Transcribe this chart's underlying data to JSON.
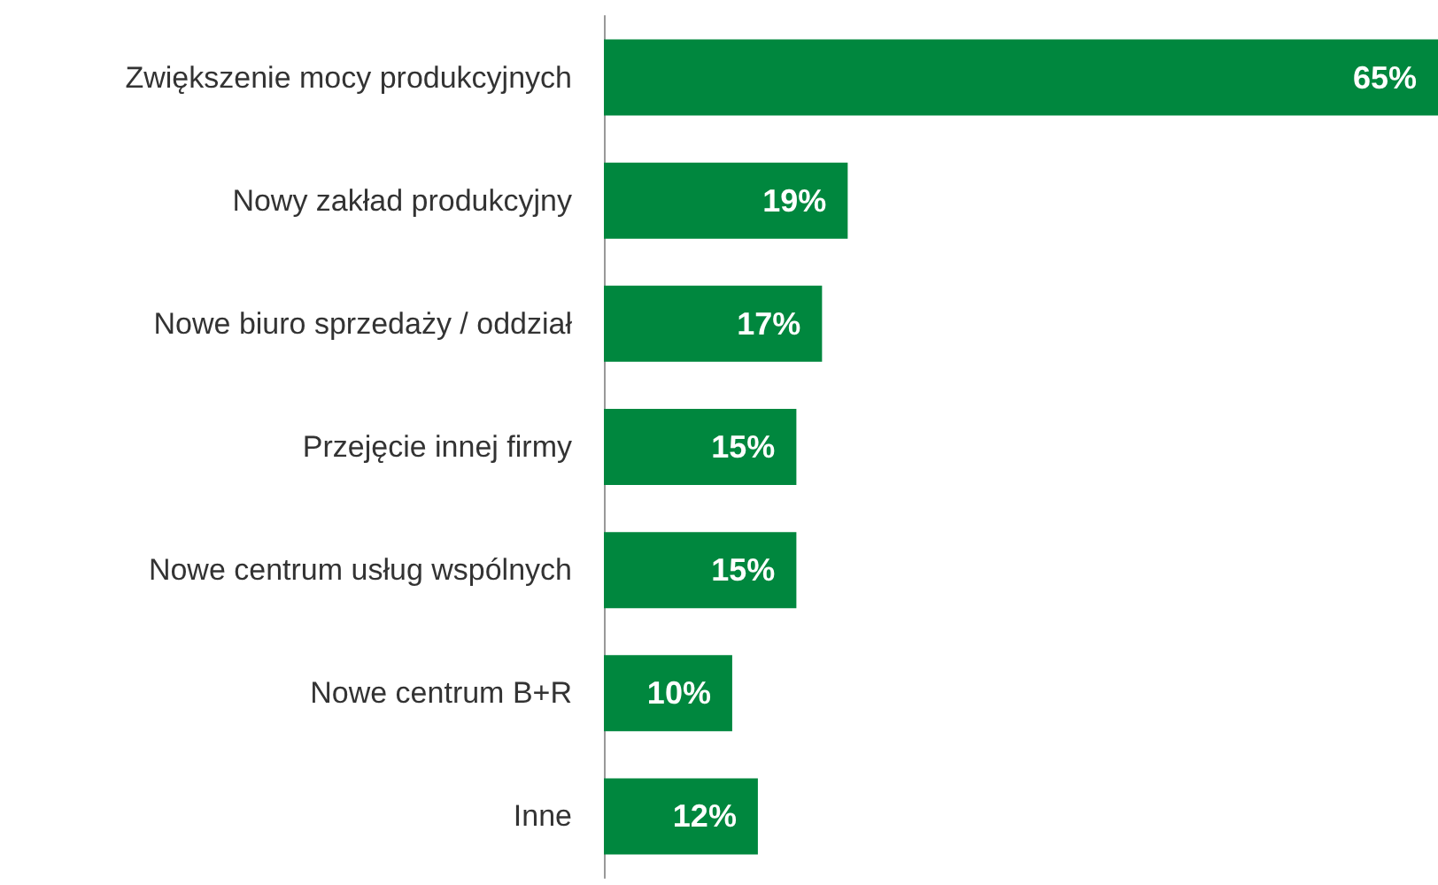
{
  "chart_data": {
    "type": "bar",
    "orientation": "horizontal",
    "categories": [
      "Zwiększenie mocy produkcyjnych",
      "Nowy zakład produkcyjny",
      "Nowe biuro sprzedaży / oddział",
      "Przejęcie innej firmy",
      "Nowe centrum usług wspólnych",
      "Nowe centrum B+R",
      "Inne"
    ],
    "values": [
      65,
      19,
      17,
      15,
      15,
      10,
      12
    ],
    "value_labels": [
      "65%",
      "19%",
      "17%",
      "15%",
      "15%",
      "10%",
      "12%"
    ],
    "color": "#00873e"
  }
}
